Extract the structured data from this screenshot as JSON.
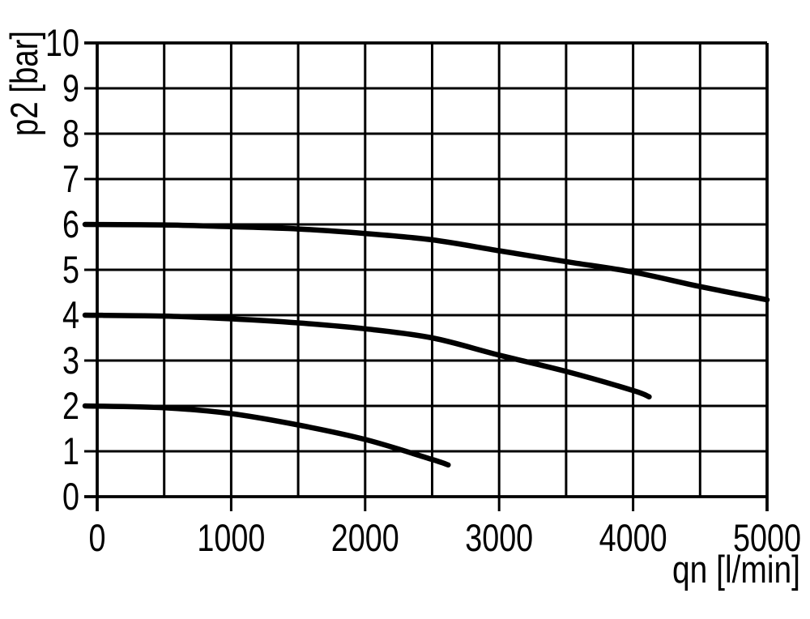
{
  "figure": {
    "background": "#ffffff",
    "line_color": "#000000"
  },
  "chart_data": {
    "type": "line",
    "title": "",
    "xlabel": "qn [l/min]",
    "ylabel": "p2 [bar]",
    "xlim": [
      0,
      5000
    ],
    "ylim": [
      0,
      10
    ],
    "x_major_ticks": [
      0,
      1000,
      2000,
      3000,
      4000,
      5000
    ],
    "x_grid_step": 500,
    "y_ticks": [
      0,
      1,
      2,
      3,
      4,
      5,
      6,
      7,
      8,
      9,
      10
    ],
    "y_grid_step": 1,
    "grid": true,
    "legend": "none",
    "series": [
      {
        "name": "curve_start_6_bar",
        "start_pressure_bar": 6,
        "points": [
          [
            0,
            6.0
          ],
          [
            500,
            5.99
          ],
          [
            1000,
            5.95
          ],
          [
            1500,
            5.9
          ],
          [
            2000,
            5.8
          ],
          [
            2500,
            5.66
          ],
          [
            3000,
            5.42
          ],
          [
            3500,
            5.18
          ],
          [
            4000,
            4.95
          ],
          [
            4500,
            4.63
          ],
          [
            5000,
            4.34
          ]
        ]
      },
      {
        "name": "curve_start_4_bar",
        "start_pressure_bar": 4,
        "points": [
          [
            0,
            4.0
          ],
          [
            500,
            3.98
          ],
          [
            1000,
            3.92
          ],
          [
            1500,
            3.83
          ],
          [
            2000,
            3.7
          ],
          [
            2500,
            3.5
          ],
          [
            3000,
            3.12
          ],
          [
            3500,
            2.76
          ],
          [
            4000,
            2.34
          ],
          [
            4120,
            2.2
          ]
        ]
      },
      {
        "name": "curve_start_2_bar",
        "start_pressure_bar": 2,
        "points": [
          [
            0,
            2.0
          ],
          [
            500,
            1.96
          ],
          [
            1000,
            1.83
          ],
          [
            1500,
            1.58
          ],
          [
            2000,
            1.26
          ],
          [
            2500,
            0.82
          ],
          [
            2620,
            0.7
          ]
        ]
      }
    ]
  }
}
